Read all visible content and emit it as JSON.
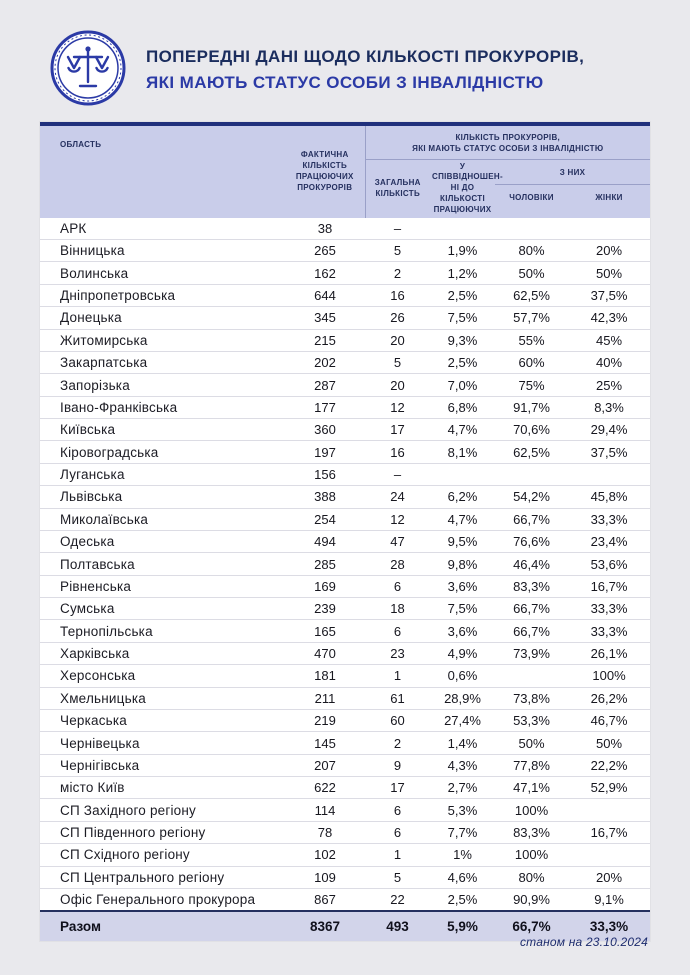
{
  "header": {
    "title_line1": "ПОПЕРЕДНІ ДАНІ ЩОДО КІЛЬКОСТІ ПРОКУРОРІВ,",
    "title_line2": "ЯКІ МАЮТЬ СТАТУС ОСОБИ З ІНВАЛІДНІСТЮ",
    "logo_icon": "prosecutor-general-office-emblem"
  },
  "colors": {
    "page_bg": "#e9e9ed",
    "card_bg": "#ffffff",
    "header_band": "#c9cdea",
    "accent_navy": "#20307c",
    "title_navy": "#1b2d5e",
    "title_blue": "#2b3aa6",
    "total_row_bg": "#d2d4ea",
    "row_border": "#dcdce4"
  },
  "table": {
    "columns": {
      "region": "ОБЛАСТЬ",
      "actual": "ФАКТИЧНА\nКІЛЬКІСТЬ\nПРАЦЮЮЧИХ\nПРОКУРОРІВ",
      "group": "КІЛЬКІСТЬ ПРОКУРОРІВ,\nЯКІ МАЮТЬ СТАТУС ОСОБИ З ІНВАЛІДНІСТЮ",
      "total": "ЗАГАЛЬНА\nКІЛЬКІСТЬ",
      "ratio": "У СПІВВІДНОШЕН-\nНІ ДО КІЛЬКОСТІ\nПРАЦЮЮЧИХ",
      "of_them": "З НИХ",
      "men": "ЧОЛОВІКИ",
      "women": "ЖІНКИ"
    },
    "rows": [
      [
        "АРК",
        "38",
        "–",
        "",
        "",
        ""
      ],
      [
        "Вінницька",
        "265",
        "5",
        "1,9%",
        "80%",
        "20%"
      ],
      [
        "Волинська",
        "162",
        "2",
        "1,2%",
        "50%",
        "50%"
      ],
      [
        "Дніпропетровська",
        "644",
        "16",
        "2,5%",
        "62,5%",
        "37,5%"
      ],
      [
        "Донецька",
        "345",
        "26",
        "7,5%",
        "57,7%",
        "42,3%"
      ],
      [
        "Житомирська",
        "215",
        "20",
        "9,3%",
        "55%",
        "45%"
      ],
      [
        "Закарпатська",
        "202",
        "5",
        "2,5%",
        "60%",
        "40%"
      ],
      [
        "Запорізька",
        "287",
        "20",
        "7,0%",
        "75%",
        "25%"
      ],
      [
        "Івано-Франківська",
        "177",
        "12",
        "6,8%",
        "91,7%",
        "8,3%"
      ],
      [
        "Київська",
        "360",
        "17",
        "4,7%",
        "70,6%",
        "29,4%"
      ],
      [
        "Кіровоградська",
        "197",
        "16",
        "8,1%",
        "62,5%",
        "37,5%"
      ],
      [
        "Луганська",
        "156",
        "–",
        "",
        "",
        ""
      ],
      [
        "Львівська",
        "388",
        "24",
        "6,2%",
        "54,2%",
        "45,8%"
      ],
      [
        "Миколаївська",
        "254",
        "12",
        "4,7%",
        "66,7%",
        "33,3%"
      ],
      [
        "Одеська",
        "494",
        "47",
        "9,5%",
        "76,6%",
        "23,4%"
      ],
      [
        "Полтавська",
        "285",
        "28",
        "9,8%",
        "46,4%",
        "53,6%"
      ],
      [
        "Рівненська",
        "169",
        "6",
        "3,6%",
        "83,3%",
        "16,7%"
      ],
      [
        "Сумська",
        "239",
        "18",
        "7,5%",
        "66,7%",
        "33,3%"
      ],
      [
        "Тернопільська",
        "165",
        "6",
        "3,6%",
        "66,7%",
        "33,3%"
      ],
      [
        "Харківська",
        "470",
        "23",
        "4,9%",
        "73,9%",
        "26,1%"
      ],
      [
        "Херсонська",
        "181",
        "1",
        "0,6%",
        "",
        "100%"
      ],
      [
        "Хмельницька",
        "211",
        "61",
        "28,9%",
        "73,8%",
        "26,2%"
      ],
      [
        "Черкаська",
        "219",
        "60",
        "27,4%",
        "53,3%",
        "46,7%"
      ],
      [
        "Чернівецька",
        "145",
        "2",
        "1,4%",
        "50%",
        "50%"
      ],
      [
        "Чернігівська",
        "207",
        "9",
        "4,3%",
        "77,8%",
        "22,2%"
      ],
      [
        "місто Київ",
        "622",
        "17",
        "2,7%",
        "47,1%",
        "52,9%"
      ],
      [
        "СП Західного регіону",
        "114",
        "6",
        "5,3%",
        "100%",
        ""
      ],
      [
        "СП Південного регіону",
        "78",
        "6",
        "7,7%",
        "83,3%",
        "16,7%"
      ],
      [
        "СП Східного регіону",
        "102",
        "1",
        "1%",
        "100%",
        ""
      ],
      [
        "СП Центрального регіону",
        "109",
        "5",
        "4,6%",
        "80%",
        "20%"
      ],
      [
        "Офіс Генерального прокурора",
        "867",
        "22",
        "2,5%",
        "90,9%",
        "9,1%"
      ]
    ],
    "total": {
      "label": "Разом",
      "actual": "8367",
      "total": "493",
      "ratio": "5,9%",
      "men": "66,7%",
      "women": "33,3%"
    }
  },
  "footer": {
    "note": "станом на 23.10.2024"
  }
}
